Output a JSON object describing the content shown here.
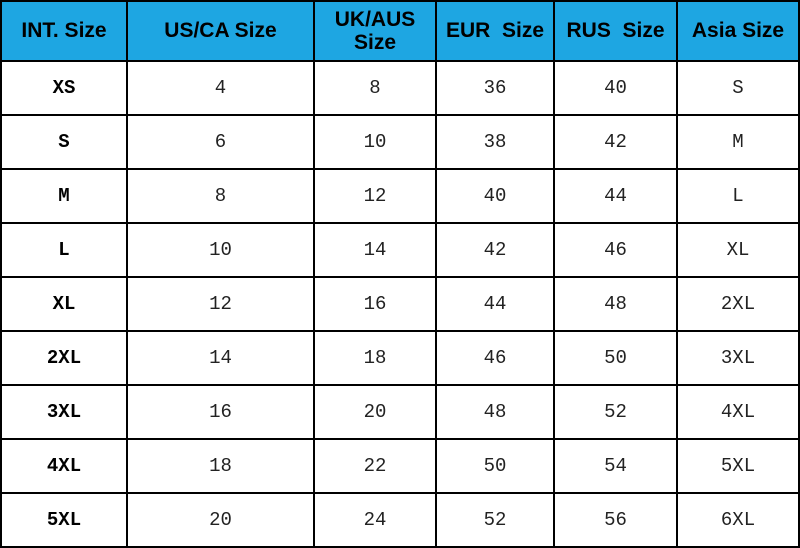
{
  "table": {
    "header": [
      "INT. Size",
      "US/CA Size",
      "UK/AUS Size",
      "EUR  Size",
      "RUS  Size",
      "Asia Size"
    ],
    "rows": [
      [
        "XS",
        4,
        8,
        36,
        40,
        "S"
      ],
      [
        "S",
        6,
        10,
        38,
        42,
        "M"
      ],
      [
        "M",
        8,
        12,
        40,
        44,
        "L"
      ],
      [
        "L",
        10,
        14,
        42,
        46,
        "XL"
      ],
      [
        "XL",
        12,
        16,
        44,
        48,
        "2XL"
      ],
      [
        "2XL",
        14,
        18,
        46,
        50,
        "3XL"
      ],
      [
        "3XL",
        16,
        20,
        48,
        52,
        "4XL"
      ],
      [
        "4XL",
        18,
        22,
        50,
        54,
        "5XL"
      ],
      [
        "5XL",
        20,
        24,
        52,
        56,
        "6XL"
      ]
    ]
  }
}
